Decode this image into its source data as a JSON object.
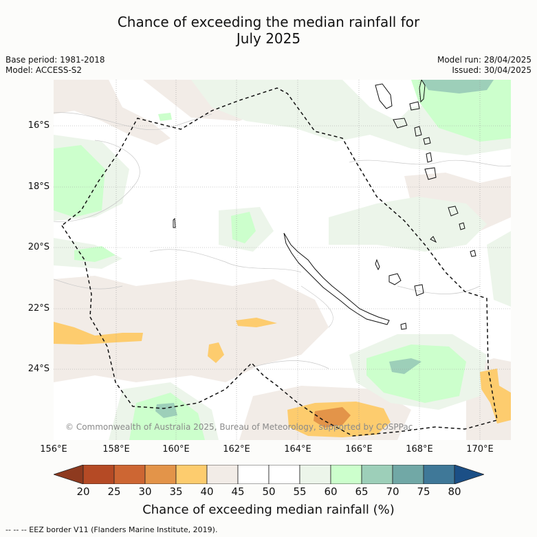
{
  "title_line1": "Chance of exceeding the median rainfall for",
  "title_line2": "July 2025",
  "meta_left": [
    "Base period: 1981-2018",
    "Model: ACCESS-S2"
  ],
  "meta_right": [
    "Model run: 28/04/2025",
    "Issued: 30/04/2025"
  ],
  "lat_labels": [
    "16°S",
    "18°S",
    "20°S",
    "22°S",
    "24°S"
  ],
  "lon_labels": [
    "156°E",
    "158°E",
    "160°E",
    "162°E",
    "164°E",
    "166°E",
    "168°E",
    "170°E"
  ],
  "copyright": "© Commonwealth of Australia 2025, Bureau of Meteorology, supported by COSPPac",
  "colorbar": {
    "ticks": [
      "20",
      "25",
      "30",
      "35",
      "40",
      "45",
      "50",
      "55",
      "60",
      "65",
      "70",
      "75",
      "80"
    ],
    "colors": [
      "#b54a25",
      "#cd6633",
      "#e39449",
      "#fdcc6e",
      "#f2ece7",
      "#ffffff",
      "#ffffff",
      "#ecf5ea",
      "#ccffcc",
      "#9dcfb9",
      "#71a8a6",
      "#3f7898"
    ],
    "low_extend_color": "#8e3a1f",
    "high_extend_color": "#1b4f86",
    "label": "Chance of exceeding median rainfall (%)"
  },
  "eez_legend": "-- -- -- EEZ border V11 (Flanders Marine Institute, 2019)."
}
